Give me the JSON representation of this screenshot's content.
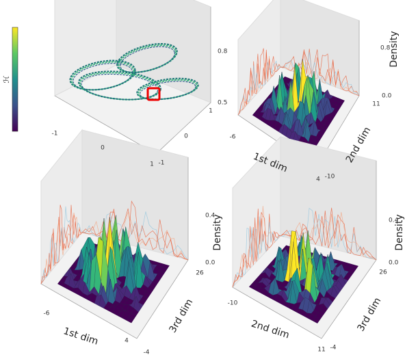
{
  "colorbar": {
    "label": "ℋ"
  },
  "panels": [
    {
      "x_ticks": [
        "-1",
        "0",
        "1"
      ],
      "y_ticks": [
        "-1",
        "0",
        "1"
      ],
      "z_ticks": [
        "0.5",
        "0.8"
      ]
    },
    {
      "x_label": "1st dim",
      "x_ticks": [
        "-6",
        "4"
      ],
      "y_label": "2nd dim",
      "y_ticks": [
        "-10",
        "11"
      ],
      "z_label": "Density",
      "z_ticks": [
        "0.0",
        "0.8"
      ]
    },
    {
      "x_label": "1st dim",
      "x_ticks": [
        "-6",
        "4"
      ],
      "y_label": "3rd dim",
      "y_ticks": [
        "-4",
        "26"
      ],
      "z_label": "Density",
      "z_ticks": [
        "0.0",
        "0.4"
      ]
    },
    {
      "x_label": "2nd dim",
      "x_ticks": [
        "-10",
        "11"
      ],
      "y_label": "3rd dim",
      "y_ticks": [
        "-4",
        "26"
      ],
      "z_label": "Density",
      "z_ticks": [
        "0.0",
        "0.4"
      ]
    }
  ]
}
